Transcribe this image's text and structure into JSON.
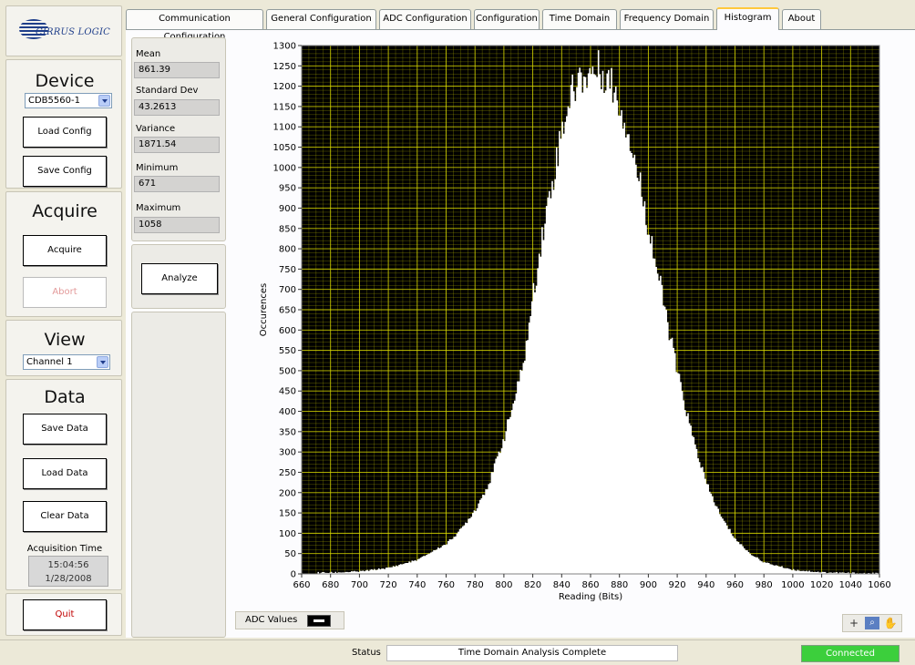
{
  "brand": {
    "logo_text": "CIRRUS LOGIC"
  },
  "left_panel": {
    "device_heading": "Device",
    "device_select": "CDB5560-1",
    "load_config": "Load Config",
    "save_config": "Save Config",
    "acquire_heading": "Acquire",
    "acquire": "Acquire",
    "abort": "Abort",
    "view_heading": "View",
    "view_select": "Channel 1",
    "data_heading": "Data",
    "save_data": "Save Data",
    "load_data": "Load Data",
    "clear_data": "Clear Data",
    "acq_time_label": "Acquisition Time",
    "acq_time": "15:04:56",
    "acq_date": "1/28/2008",
    "quit": "Quit"
  },
  "tabs": [
    {
      "label": "Communication Configuration",
      "active": false
    },
    {
      "label": "General Configuration",
      "active": false
    },
    {
      "label": "ADC Configuration",
      "active": false
    },
    {
      "label": "Configuration",
      "active": false
    },
    {
      "label": "Time Domain",
      "active": false
    },
    {
      "label": "Frequency Domain",
      "active": false
    },
    {
      "label": "Histogram",
      "active": true
    },
    {
      "label": "About",
      "active": false
    }
  ],
  "stats": {
    "mean_label": "Mean",
    "mean": "861.39",
    "std_label": "Standard Dev",
    "std": "43.2613",
    "var_label": "Variance",
    "var": "1871.54",
    "min_label": "Minimum",
    "min": "671",
    "max_label": "Maximum",
    "max": "1058"
  },
  "analyze_button": "Analyze",
  "legend": {
    "label": "ADC Values"
  },
  "status": {
    "label": "Status",
    "text": "Time Domain Analysis Complete",
    "connection": "Connected"
  },
  "colors": {
    "plot_bg": "#000000",
    "grid": "#d8d800",
    "bars": "#ffffff",
    "connected": "#3ccf3c",
    "tab_active_accent": "#ffc83c"
  },
  "icons": [
    "cursor-crosshair-icon",
    "zoom-icon",
    "pan-hand-icon"
  ],
  "chart_data": {
    "type": "bar",
    "xlabel": "Reading (Bits)",
    "ylabel": "Occurences",
    "xlim": [
      660,
      1060
    ],
    "ylim": [
      0,
      1300
    ],
    "xticks": [
      660,
      680,
      700,
      720,
      740,
      760,
      780,
      800,
      820,
      840,
      860,
      880,
      900,
      920,
      940,
      960,
      980,
      1000,
      1020,
      1040,
      1060
    ],
    "yticks": [
      0,
      50,
      100,
      150,
      200,
      250,
      300,
      350,
      400,
      450,
      500,
      550,
      600,
      650,
      700,
      750,
      800,
      850,
      900,
      950,
      1000,
      1050,
      1100,
      1150,
      1200,
      1250,
      1300
    ],
    "grid": true,
    "series": [
      {
        "x": [
          680,
          700,
          720,
          740,
          760,
          770,
          780,
          790,
          800,
          810,
          815,
          820,
          825,
          830,
          835,
          840,
          845,
          850,
          855,
          860,
          865,
          870,
          875,
          880,
          885,
          890,
          895,
          900,
          905,
          910,
          915,
          920,
          930,
          940,
          950,
          960,
          970,
          980,
          1000,
          1020,
          1040,
          1058
        ],
        "y": [
          3,
          6,
          15,
          35,
          75,
          110,
          160,
          230,
          340,
          470,
          560,
          690,
          810,
          910,
          1000,
          1100,
          1170,
          1210,
          1225,
          1235,
          1240,
          1230,
          1200,
          1150,
          1100,
          1020,
          940,
          850,
          760,
          670,
          580,
          490,
          340,
          220,
          140,
          85,
          50,
          28,
          10,
          4,
          2,
          1
        ]
      }
    ]
  }
}
